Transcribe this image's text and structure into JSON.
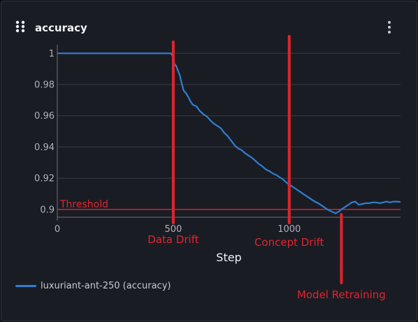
{
  "panel": {
    "title": "accuracy"
  },
  "colors": {
    "series": "#2f7fd0",
    "annotation": "#e0242e",
    "grid": "#3a3d45",
    "tick_text": "#aeb2ba",
    "axis_label": "#f0f2f6"
  },
  "chart_data": {
    "type": "line",
    "title": "accuracy",
    "xlabel": "Step",
    "ylabel": "",
    "xlim": [
      0,
      1480
    ],
    "ylim": [
      0.895,
      1.0055
    ],
    "x_ticks": [
      0,
      500,
      1000
    ],
    "y_ticks": [
      0.9,
      0.92,
      0.94,
      0.96,
      0.98,
      1
    ],
    "y_tick_labels": [
      "0.9",
      "0.92",
      "0.94",
      "0.96",
      "0.98",
      "1"
    ],
    "grid": true,
    "series": [
      {
        "name": "luxuriant-ant-250 (accuracy)",
        "x": [
          0,
          100,
          200,
          300,
          400,
          490,
          500,
          505,
          512,
          520,
          528,
          536,
          545,
          555,
          565,
          575,
          585,
          600,
          615,
          630,
          645,
          660,
          675,
          690,
          705,
          720,
          735,
          750,
          765,
          780,
          795,
          810,
          825,
          840,
          855,
          870,
          885,
          900,
          915,
          930,
          945,
          960,
          975,
          990,
          1005,
          1020,
          1035,
          1050,
          1065,
          1080,
          1095,
          1110,
          1125,
          1140,
          1155,
          1170,
          1185,
          1200,
          1212,
          1225,
          1240,
          1255,
          1270,
          1285,
          1300,
          1315,
          1330,
          1345,
          1360,
          1375,
          1390,
          1405,
          1420,
          1435,
          1450,
          1465,
          1480
        ],
        "values": [
          1.0,
          1.0,
          1.0,
          1.0,
          1.0,
          1.0,
          0.9975,
          0.993,
          0.992,
          0.989,
          0.986,
          0.981,
          0.976,
          0.9745,
          0.972,
          0.969,
          0.967,
          0.966,
          0.963,
          0.961,
          0.9595,
          0.957,
          0.955,
          0.9535,
          0.952,
          0.949,
          0.947,
          0.944,
          0.941,
          0.939,
          0.938,
          0.936,
          0.9345,
          0.933,
          0.931,
          0.929,
          0.9275,
          0.9255,
          0.9245,
          0.923,
          0.922,
          0.9205,
          0.919,
          0.917,
          0.9155,
          0.914,
          0.9125,
          0.911,
          0.9095,
          0.908,
          0.9065,
          0.905,
          0.904,
          0.9025,
          0.901,
          0.8995,
          0.8985,
          0.8975,
          0.8985,
          0.9,
          0.9015,
          0.903,
          0.9045,
          0.905,
          0.903,
          0.9035,
          0.904,
          0.904,
          0.9045,
          0.9045,
          0.904,
          0.9045,
          0.905,
          0.9045,
          0.905,
          0.905,
          0.9048
        ]
      }
    ],
    "annotations": [
      {
        "label": "Threshold",
        "type": "hline",
        "y": 0.9
      },
      {
        "label": "Data Drift",
        "type": "vline",
        "x": 500
      },
      {
        "label": "Concept Drift",
        "type": "vline",
        "x": 1000
      },
      {
        "label": "Model Retraining",
        "type": "vline",
        "x": 1225
      }
    ]
  }
}
